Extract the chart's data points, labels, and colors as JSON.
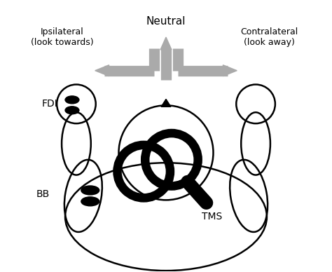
{
  "background_color": "#ffffff",
  "text_neutral": "Neutral",
  "text_ipsilateral": "Ipsilateral\n(look towards)",
  "text_contralateral": "Contralateral\n(look away)",
  "text_fdi": "FDI",
  "text_bb": "BB",
  "text_tms": "TMS",
  "arrow_color": "#aaaaaa",
  "line_color": "#000000",
  "figsize": [
    4.74,
    3.88
  ],
  "dpi": 100
}
